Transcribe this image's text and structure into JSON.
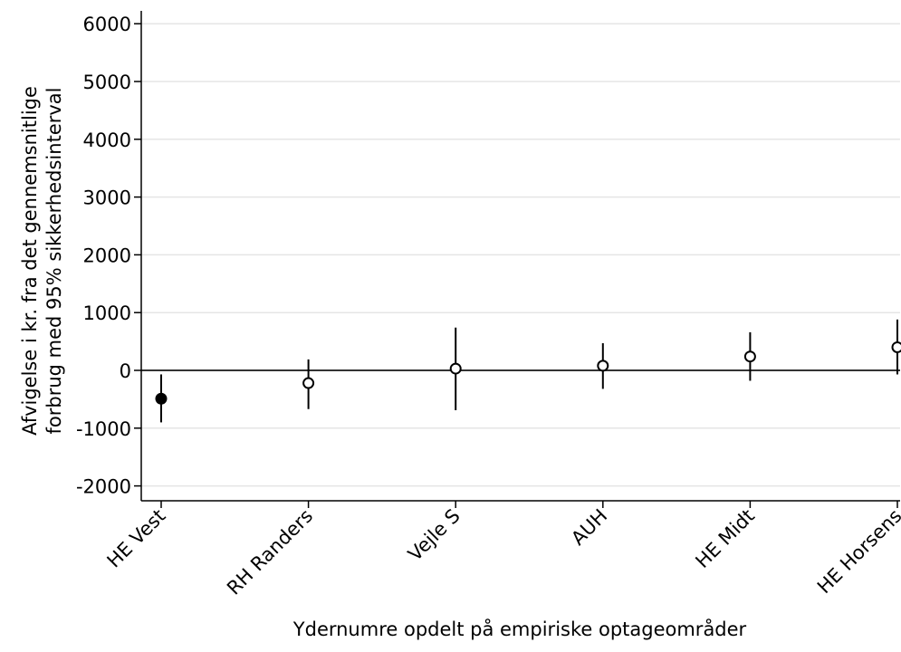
{
  "chart_data": {
    "type": "scatter",
    "subtype": "error-bar",
    "ylabel_line1": "Afvigelse i kr. fra det gennemsnitlige",
    "ylabel_line2": "forbrug med 95% sikkerhedsinterval",
    "xlabel": "Ydernumre opdelt på empiriske optageområder",
    "categories": [
      "HE Vest",
      "RH Randers",
      "Vejle S",
      "AUH",
      "HE Midt",
      "HE Horsens"
    ],
    "points": [
      {
        "category": "HE Vest",
        "estimate": -490,
        "lower": -900,
        "upper": -70,
        "filled": true
      },
      {
        "category": "RH Randers",
        "estimate": -220,
        "lower": -670,
        "upper": 190,
        "filled": false
      },
      {
        "category": "Vejle S",
        "estimate": 30,
        "lower": -690,
        "upper": 740,
        "filled": false
      },
      {
        "category": "AUH",
        "estimate": 80,
        "lower": -320,
        "upper": 470,
        "filled": false
      },
      {
        "category": "HE Midt",
        "estimate": 240,
        "lower": -180,
        "upper": 660,
        "filled": false
      },
      {
        "category": "HE Horsens",
        "estimate": 400,
        "lower": -70,
        "upper": 880,
        "filled": false
      }
    ],
    "yticks": [
      -2000,
      -1000,
      0,
      1000,
      2000,
      3000,
      4000,
      5000,
      6000
    ],
    "ytick_labels": [
      "-2000",
      "-1000",
      "0",
      "1000",
      "2000",
      "3000",
      "4000",
      "5000",
      "6000"
    ],
    "ylim": [
      -2000,
      6000
    ],
    "reference_line": 0,
    "grid": true,
    "colors": {
      "grid": "#e5e5e5",
      "axis": "#000000",
      "reference": "#333333",
      "marker": "#000000"
    }
  }
}
